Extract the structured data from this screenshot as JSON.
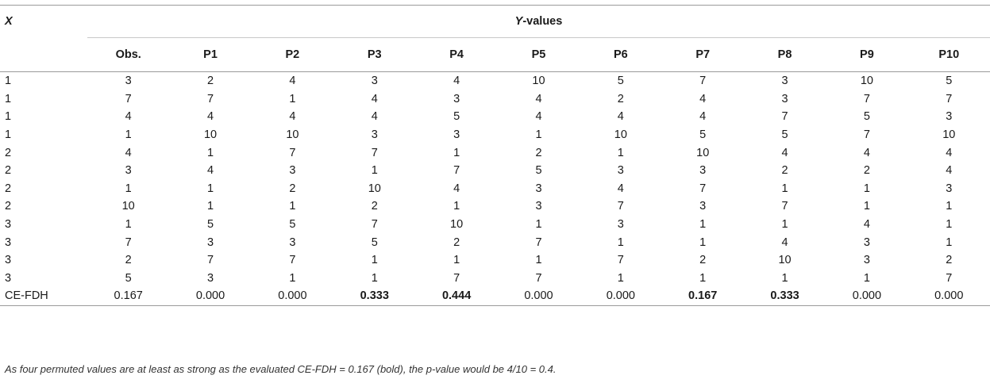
{
  "table": {
    "x_header": "X",
    "y_header_italic": "Y",
    "y_header_rest": "-values",
    "columns": [
      "Obs.",
      "P1",
      "P2",
      "P3",
      "P4",
      "P5",
      "P6",
      "P7",
      "P8",
      "P9",
      "P10"
    ],
    "rows": [
      {
        "x": "1",
        "values": [
          "3",
          "2",
          "4",
          "3",
          "4",
          "10",
          "5",
          "7",
          "3",
          "10",
          "5"
        ]
      },
      {
        "x": "1",
        "values": [
          "7",
          "7",
          "1",
          "4",
          "3",
          "4",
          "2",
          "4",
          "3",
          "7",
          "7"
        ]
      },
      {
        "x": "1",
        "values": [
          "4",
          "4",
          "4",
          "4",
          "5",
          "4",
          "4",
          "4",
          "7",
          "5",
          "3"
        ]
      },
      {
        "x": "1",
        "values": [
          "1",
          "10",
          "10",
          "3",
          "3",
          "1",
          "10",
          "5",
          "5",
          "7",
          "10"
        ]
      },
      {
        "x": "2",
        "values": [
          "4",
          "1",
          "7",
          "7",
          "1",
          "2",
          "1",
          "10",
          "4",
          "4",
          "4"
        ]
      },
      {
        "x": "2",
        "values": [
          "3",
          "4",
          "3",
          "1",
          "7",
          "5",
          "3",
          "3",
          "2",
          "2",
          "4"
        ]
      },
      {
        "x": "2",
        "values": [
          "1",
          "1",
          "2",
          "10",
          "4",
          "3",
          "4",
          "7",
          "1",
          "1",
          "3"
        ]
      },
      {
        "x": "2",
        "values": [
          "10",
          "1",
          "1",
          "2",
          "1",
          "3",
          "7",
          "3",
          "7",
          "1",
          "1"
        ]
      },
      {
        "x": "3",
        "values": [
          "1",
          "5",
          "5",
          "7",
          "10",
          "1",
          "3",
          "1",
          "1",
          "4",
          "1"
        ]
      },
      {
        "x": "3",
        "values": [
          "7",
          "3",
          "3",
          "5",
          "2",
          "7",
          "1",
          "1",
          "4",
          "3",
          "1"
        ]
      },
      {
        "x": "3",
        "values": [
          "2",
          "7",
          "7",
          "1",
          "1",
          "1",
          "7",
          "2",
          "10",
          "3",
          "2"
        ]
      },
      {
        "x": "3",
        "values": [
          "5",
          "3",
          "1",
          "1",
          "7",
          "7",
          "1",
          "1",
          "1",
          "1",
          "7"
        ]
      }
    ],
    "summary": {
      "label": "CE-FDH",
      "values": [
        "0.167",
        "0.000",
        "0.000",
        "0.333",
        "0.444",
        "0.000",
        "0.000",
        "0.167",
        "0.333",
        "0.000",
        "0.000"
      ],
      "bold": [
        false,
        false,
        false,
        true,
        true,
        false,
        false,
        true,
        true,
        false,
        false
      ]
    }
  },
  "footnote": "As four permuted values are at least as strong as the evaluated CE-FDH = 0.167 (bold), the p-value would be 4/10 = 0.4."
}
